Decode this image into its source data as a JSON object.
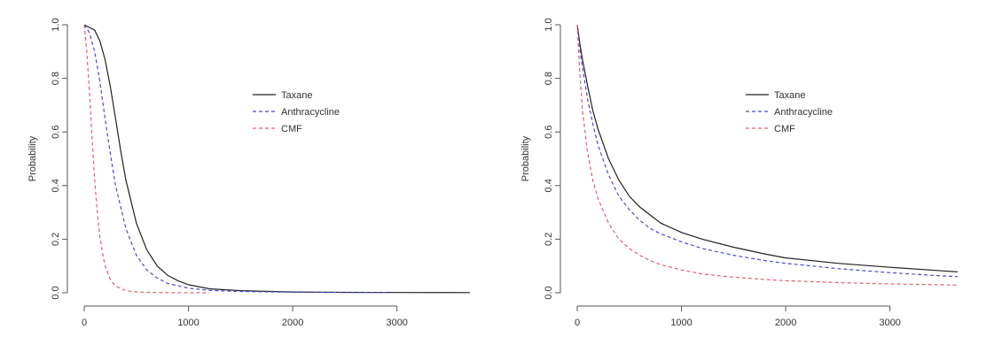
{
  "chart_data": [
    {
      "type": "line",
      "ylabel": "Probability",
      "xlabel": "",
      "xlim": [
        0,
        3700
      ],
      "ylim": [
        0,
        1
      ],
      "xticks": [
        0,
        1000,
        2000,
        3000
      ],
      "yticks": [
        0.0,
        0.2,
        0.4,
        0.6,
        0.8,
        1.0
      ],
      "legend_position": "right-center",
      "grid": false,
      "series": [
        {
          "name": "Taxane",
          "color": "#222222",
          "dash": "solid",
          "x": [
            0,
            100,
            150,
            200,
            250,
            300,
            350,
            400,
            500,
            600,
            700,
            800,
            900,
            1000,
            1200,
            1500,
            2000,
            2500,
            3000,
            3700
          ],
          "y": [
            1.0,
            0.98,
            0.94,
            0.87,
            0.77,
            0.65,
            0.53,
            0.42,
            0.26,
            0.16,
            0.1,
            0.065,
            0.045,
            0.03,
            0.015,
            0.008,
            0.003,
            0.0015,
            0.001,
            0.0005
          ]
        },
        {
          "name": "Anthracycline",
          "color": "#4a4ad6",
          "dash": "dashed",
          "x": [
            0,
            50,
            100,
            150,
            200,
            250,
            300,
            400,
            500,
            600,
            700,
            800,
            1000,
            1200,
            1500,
            2000,
            2500,
            2900
          ],
          "y": [
            1.0,
            0.97,
            0.9,
            0.79,
            0.65,
            0.52,
            0.4,
            0.24,
            0.14,
            0.085,
            0.055,
            0.035,
            0.017,
            0.009,
            0.005,
            0.002,
            0.001,
            0.001
          ]
        },
        {
          "name": "CMF",
          "color": "#e06070",
          "dash": "dashed",
          "x": [
            0,
            25,
            50,
            75,
            100,
            125,
            150,
            175,
            200,
            250,
            300,
            400,
            500,
            700,
            1000,
            1200
          ],
          "y": [
            1.0,
            0.9,
            0.75,
            0.58,
            0.42,
            0.3,
            0.21,
            0.15,
            0.1,
            0.05,
            0.025,
            0.008,
            0.003,
            0.001,
            0.0,
            0.0
          ]
        }
      ]
    },
    {
      "type": "line",
      "ylabel": "Probability",
      "xlabel": "",
      "xlim": [
        0,
        3700
      ],
      "ylim": [
        0,
        1
      ],
      "xticks": [
        0,
        1000,
        2000,
        3000
      ],
      "yticks": [
        0.0,
        0.2,
        0.4,
        0.6,
        0.8,
        1.0
      ],
      "legend_position": "right-center",
      "grid": false,
      "series": [
        {
          "name": "Taxane",
          "color": "#222222",
          "dash": "solid",
          "x": [
            0,
            25,
            50,
            100,
            150,
            200,
            300,
            400,
            500,
            600,
            700,
            800,
            1000,
            1200,
            1500,
            1800,
            2000,
            2500,
            3000,
            3500,
            3650
          ],
          "y": [
            1.0,
            0.93,
            0.87,
            0.77,
            0.68,
            0.61,
            0.5,
            0.42,
            0.36,
            0.32,
            0.29,
            0.26,
            0.225,
            0.2,
            0.17,
            0.145,
            0.13,
            0.11,
            0.095,
            0.082,
            0.078
          ]
        },
        {
          "name": "Anthracycline",
          "color": "#4a4ad6",
          "dash": "dashed",
          "x": [
            0,
            25,
            50,
            100,
            150,
            200,
            300,
            400,
            500,
            600,
            700,
            800,
            1000,
            1200,
            1500,
            1800,
            2000,
            2500,
            3000,
            3500,
            3650
          ],
          "y": [
            1.0,
            0.91,
            0.84,
            0.72,
            0.63,
            0.55,
            0.44,
            0.36,
            0.31,
            0.27,
            0.24,
            0.22,
            0.19,
            0.165,
            0.14,
            0.12,
            0.11,
            0.09,
            0.075,
            0.063,
            0.06
          ]
        },
        {
          "name": "CMF",
          "color": "#e06070",
          "dash": "dashed",
          "x": [
            0,
            25,
            50,
            100,
            150,
            200,
            300,
            400,
            500,
            600,
            700,
            800,
            1000,
            1200,
            1500,
            1800,
            2000,
            2500,
            3000,
            3500,
            3650
          ],
          "y": [
            1.0,
            0.82,
            0.68,
            0.52,
            0.42,
            0.35,
            0.26,
            0.2,
            0.165,
            0.14,
            0.12,
            0.105,
            0.085,
            0.07,
            0.058,
            0.05,
            0.045,
            0.038,
            0.033,
            0.03,
            0.028
          ]
        }
      ]
    }
  ]
}
